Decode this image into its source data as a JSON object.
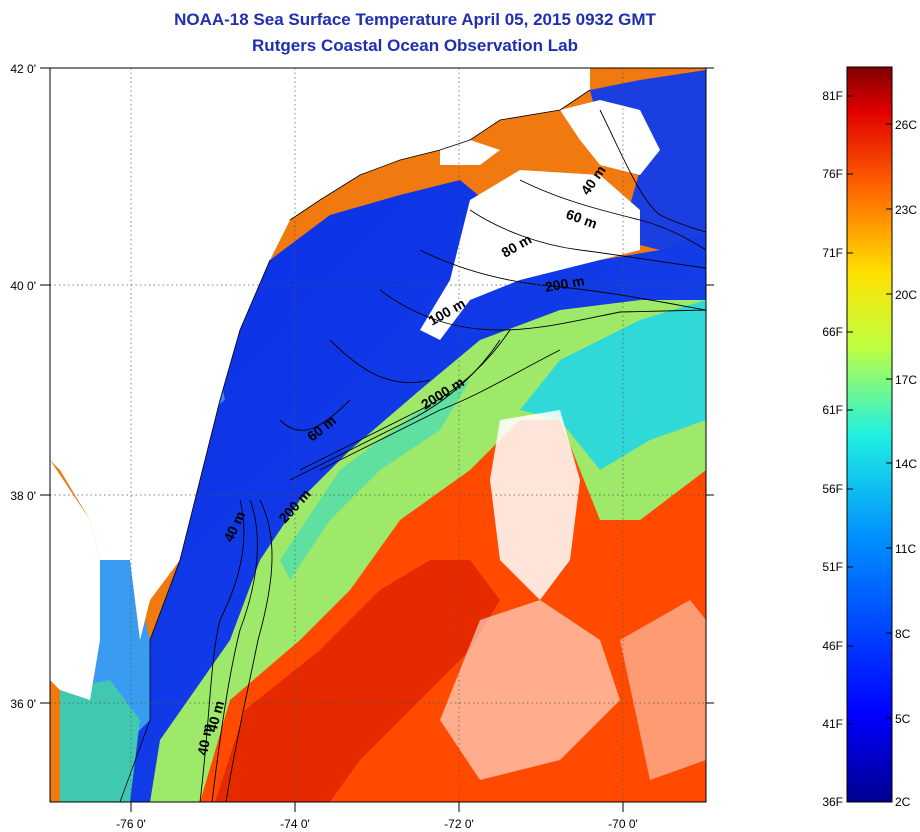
{
  "title_line1": "NOAA-18 Sea Surface Temperature April 05, 2015 0932 GMT",
  "title_line2": "Rutgers Coastal Ocean Observation Lab",
  "map": {
    "lat_ticks": [
      "42 0'",
      "40 0'",
      "38 0'",
      "36 0'"
    ],
    "lon_ticks": [
      "-76 0'",
      "-74 0'",
      "-72 0'",
      "-70 0'"
    ],
    "isobath_labels": [
      "40 m",
      "60 m",
      "80 m",
      "200 m",
      "100 m",
      "2000 m",
      "60 m",
      "40 m",
      "200 m",
      "40 m",
      "40 m"
    ]
  },
  "colorbar": {
    "fahrenheit_labels": [
      "81F",
      "76F",
      "71F",
      "66F",
      "61F",
      "56F",
      "51F",
      "46F",
      "41F",
      "36F"
    ],
    "celsius_labels": [
      "26C",
      "23C",
      "20C",
      "17C",
      "14C",
      "11C",
      "8C",
      "5C",
      "2C"
    ],
    "colors": [
      "#00008f",
      "#0000ff",
      "#0080ff",
      "#00ffff",
      "#80ff80",
      "#ffff00",
      "#ff8000",
      "#ff0000",
      "#800000"
    ]
  },
  "palette": {
    "land": "#ffffff",
    "cold_shelf": "#1030e0",
    "slope": "#20d0e0",
    "gulf_stream": "#ff4000",
    "title_color": "#1f2fb0"
  }
}
